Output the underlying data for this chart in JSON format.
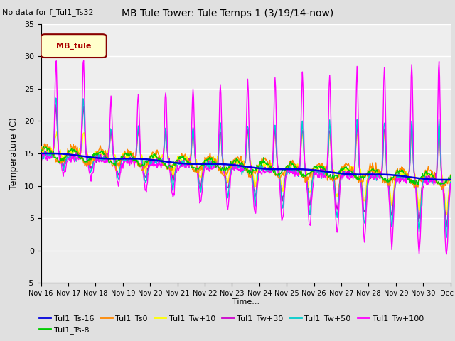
{
  "title": "MB Tule Tower: Tule Temps 1 (3/19/14-now)",
  "no_data_label": "No data for f_Tul1_Ts32",
  "ylabel": "Temperature (C)",
  "xlabel": "Time...",
  "ylim": [
    -5,
    35
  ],
  "bg_color": "#e0e0e0",
  "plot_bg": "#eeeeee",
  "xtick_labels": [
    "Nov 16",
    "Nov 17",
    "Nov 18",
    "Nov 19",
    "Nov 20",
    "Nov 21",
    "Nov 22",
    "Nov 23",
    "Nov 24",
    "Nov 25",
    "Nov 26",
    "Nov 27",
    "Nov 28",
    "Nov 29",
    "Nov 30",
    "Dec 1"
  ],
  "legend_label": "MB_tule",
  "series_colors": {
    "Tul1_Ts-16": "#0000dd",
    "Tul1_Ts-8": "#00cc00",
    "Tul1_Ts0": "#ff8800",
    "Tul1_Tw+10": "#ffff00",
    "Tul1_Tw+30": "#cc00cc",
    "Tul1_Tw+50": "#00cccc",
    "Tul1_Tw+100": "#ff00ff"
  }
}
